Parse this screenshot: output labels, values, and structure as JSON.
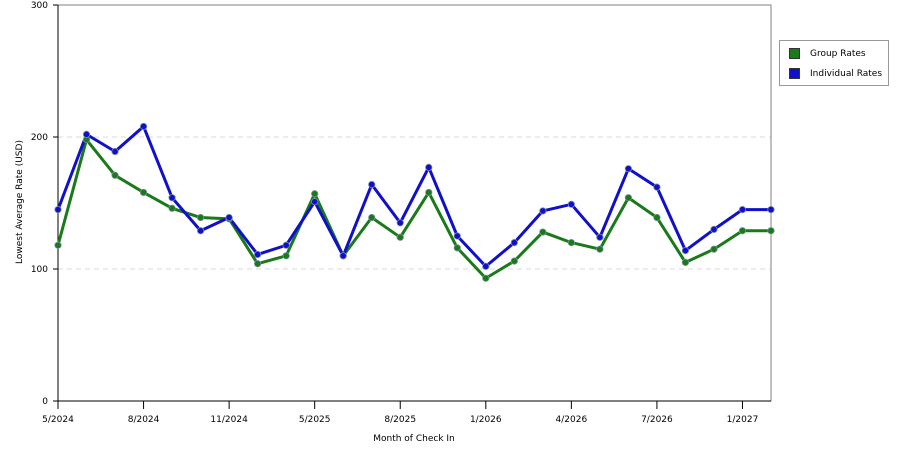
{
  "chart_data": {
    "type": "line",
    "xlabel": "Month of Check In",
    "ylabel": "Lowest Average Rate (USD)",
    "ylim": [
      0,
      300
    ],
    "y_ticks": [
      "0",
      "100",
      "200",
      "300"
    ],
    "y_tick_values": [
      0,
      100,
      200,
      300
    ],
    "x_tick_labels": [
      "5/2024",
      "8/2024",
      "11/2024",
      "5/2025",
      "8/2025",
      "1/2026",
      "4/2026",
      "7/2026",
      "1/2027"
    ],
    "x_tick_positions": [
      0,
      3,
      6,
      9,
      12,
      15,
      18,
      21,
      24
    ],
    "x_tick_marks": [
      0,
      3,
      6,
      9,
      12,
      15,
      18,
      21,
      24,
      27,
      30,
      33
    ],
    "grid": "horizontal dashed",
    "legend_position": "right",
    "colors": {
      "Group Rates": "#1a7a1a",
      "Individual Rates": "#1010cc"
    },
    "series": [
      {
        "name": "Group Rates",
        "values": [
          118,
          198,
          171,
          158,
          146,
          139,
          138,
          104,
          110,
          157,
          110,
          139,
          124,
          158,
          116,
          93,
          106,
          128,
          120,
          115,
          154,
          139,
          105,
          115,
          129,
          129
        ]
      },
      {
        "name": "Individual Rates",
        "values": [
          145,
          202,
          189,
          208,
          154,
          129,
          139,
          111,
          118,
          151,
          110,
          164,
          135,
          177,
          125,
          102,
          120,
          144,
          149,
          124,
          176,
          162,
          114,
          130,
          145,
          145
        ]
      }
    ]
  }
}
